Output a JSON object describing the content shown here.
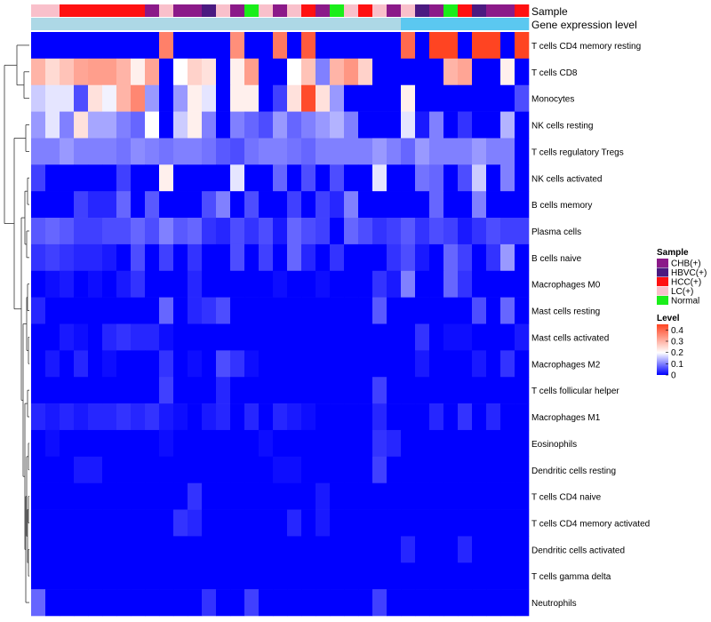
{
  "chart_data": {
    "type": "heatmap",
    "title": "",
    "annotation_rows": [
      {
        "label": "Sample"
      },
      {
        "label": "Gene expression level"
      }
    ],
    "sample_groups": [
      "LC(+)",
      "LC(+)",
      "HCC(+)",
      "HCC(+)",
      "HCC(+)",
      "HCC(+)",
      "HCC(+)",
      "HCC(+)",
      "CHB(+)",
      "LC(+)",
      "CHB(+)",
      "CHB(+)",
      "HBVC(+)",
      "LC(+)",
      "CHB(+)",
      "Normal",
      "LC(+)",
      "CHB(+)",
      "LC(+)",
      "HCC(+)",
      "CHB(+)",
      "Normal",
      "LC(+)",
      "HCC(+)",
      "LC(+)",
      "CHB(+)",
      "LC(+)",
      "HBVC(+)",
      "CHB(+)",
      "Normal",
      "HCC(+)",
      "HBVC(+)",
      "CHB(+)",
      "CHB(+)",
      "HCC(+)"
    ],
    "expression_level": [
      "low",
      "low",
      "low",
      "low",
      "low",
      "low",
      "low",
      "low",
      "low",
      "low",
      "low",
      "low",
      "low",
      "low",
      "low",
      "low",
      "low",
      "low",
      "low",
      "low",
      "low",
      "low",
      "low",
      "low",
      "low",
      "low",
      "high",
      "high",
      "high",
      "high",
      "high",
      "high",
      "high",
      "high",
      "high"
    ],
    "group_colors": {
      "CHB(+)": "#8b1a89",
      "HBVC(+)": "#4b1a80",
      "HCC(+)": "#ff1111",
      "LC(+)": "#f9c0cb",
      "Normal": "#1aee1a"
    },
    "expression_colors": {
      "low": "#add8e6",
      "high": "#5bc8f0"
    },
    "row_labels": [
      "T cells CD4 memory resting",
      "T cells CD8",
      "Monocytes",
      "NK cells resting",
      "T cells regulatory  Tregs",
      "NK cells activated",
      "B cells memory",
      "Plasma cells",
      "B cells naive",
      "Macrophages M0",
      "Mast cells resting",
      "Mast cells activated",
      "Macrophages M2",
      "T cells follicular helper",
      "Macrophages M1",
      "Eosinophils",
      "Dendritic cells resting",
      "T cells CD4 naive",
      "T cells CD4 memory activated",
      "Dendritic cells activated",
      "T cells gamma delta",
      "Neutrophils"
    ],
    "values": [
      [
        0.0,
        0.0,
        0.0,
        0.0,
        0.0,
        0.0,
        0.0,
        0.0,
        0.0,
        0.37,
        0.0,
        0.0,
        0.0,
        0.0,
        0.35,
        0.0,
        0.0,
        0.38,
        0.0,
        0.42,
        0.0,
        0.0,
        0.0,
        0.0,
        0.0,
        0.0,
        0.4,
        0.0,
        0.45,
        0.45,
        0.0,
        0.45,
        0.45,
        0.0,
        0.45
      ],
      [
        0.3,
        0.25,
        0.28,
        0.32,
        0.33,
        0.33,
        0.3,
        0.22,
        0.32,
        0.0,
        0.2,
        0.26,
        0.24,
        0.0,
        0.22,
        0.33,
        0.0,
        0.0,
        0.2,
        0.28,
        0.1,
        0.3,
        0.34,
        0.26,
        0.0,
        0.0,
        0.0,
        0.0,
        0.0,
        0.3,
        0.32,
        0.0,
        0.0,
        0.22,
        0.0
      ],
      [
        0.16,
        0.18,
        0.18,
        0.06,
        0.24,
        0.19,
        0.3,
        0.36,
        0.12,
        0.0,
        0.12,
        0.22,
        0.18,
        0.0,
        0.22,
        0.22,
        0.0,
        0.05,
        0.24,
        0.44,
        0.24,
        0.12,
        0.0,
        0.0,
        0.0,
        0.0,
        0.22,
        0.0,
        0.0,
        0.0,
        0.0,
        0.0,
        0.0,
        0.0,
        0.06
      ],
      [
        0.12,
        0.18,
        0.1,
        0.24,
        0.13,
        0.13,
        0.1,
        0.08,
        0.2,
        0.0,
        0.16,
        0.22,
        0.1,
        0.0,
        0.1,
        0.08,
        0.06,
        0.12,
        0.08,
        0.1,
        0.12,
        0.14,
        0.1,
        0.0,
        0.0,
        0.0,
        0.18,
        0.02,
        0.1,
        0.0,
        0.04,
        0.0,
        0.0,
        0.14,
        0.0
      ],
      [
        0.1,
        0.1,
        0.12,
        0.1,
        0.1,
        0.1,
        0.09,
        0.11,
        0.1,
        0.09,
        0.1,
        0.1,
        0.09,
        0.07,
        0.06,
        0.09,
        0.1,
        0.1,
        0.09,
        0.08,
        0.1,
        0.1,
        0.1,
        0.1,
        0.12,
        0.1,
        0.08,
        0.12,
        0.1,
        0.1,
        0.1,
        0.12,
        0.1,
        0.1,
        0.0
      ],
      [
        0.05,
        0.0,
        0.0,
        0.0,
        0.0,
        0.0,
        0.05,
        0.0,
        0.0,
        0.22,
        0.0,
        0.0,
        0.0,
        0.0,
        0.18,
        0.0,
        0.0,
        0.08,
        0.0,
        0.06,
        0.0,
        0.06,
        0.0,
        0.0,
        0.18,
        0.0,
        0.0,
        0.09,
        0.08,
        0.0,
        0.06,
        0.16,
        0.0,
        0.1,
        0.0
      ],
      [
        0.0,
        0.0,
        0.0,
        0.05,
        0.03,
        0.03,
        0.08,
        0.0,
        0.07,
        0.0,
        0.0,
        0.0,
        0.06,
        0.1,
        0.0,
        0.06,
        0.0,
        0.0,
        0.05,
        0.0,
        0.05,
        0.03,
        0.1,
        0.0,
        0.0,
        0.0,
        0.0,
        0.0,
        0.08,
        0.0,
        0.0,
        0.1,
        0.0,
        0.0,
        0.0
      ],
      [
        0.07,
        0.08,
        0.07,
        0.05,
        0.05,
        0.06,
        0.06,
        0.08,
        0.06,
        0.1,
        0.07,
        0.08,
        0.04,
        0.03,
        0.06,
        0.04,
        0.06,
        0.02,
        0.08,
        0.06,
        0.05,
        0.0,
        0.08,
        0.06,
        0.04,
        0.05,
        0.07,
        0.04,
        0.06,
        0.05,
        0.02,
        0.04,
        0.06,
        0.05,
        0.05
      ],
      [
        0.04,
        0.05,
        0.04,
        0.03,
        0.03,
        0.02,
        0.0,
        0.06,
        0.0,
        0.05,
        0.0,
        0.04,
        0.0,
        0.0,
        0.06,
        0.0,
        0.05,
        0.0,
        0.08,
        0.03,
        0.0,
        0.04,
        0.0,
        0.0,
        0.0,
        0.04,
        0.06,
        0.02,
        0.0,
        0.08,
        0.05,
        0.0,
        0.04,
        0.12,
        0.0
      ],
      [
        0.0,
        0.01,
        0.02,
        0.0,
        0.01,
        0.0,
        0.02,
        0.04,
        0.0,
        0.0,
        0.0,
        0.03,
        0.0,
        0.0,
        0.0,
        0.0,
        0.0,
        0.01,
        0.0,
        0.0,
        0.01,
        0.0,
        0.0,
        0.0,
        0.04,
        0.02,
        0.1,
        0.0,
        0.0,
        0.08,
        0.04,
        0.0,
        0.0,
        0.0,
        0.0
      ],
      [
        0.03,
        0.0,
        0.0,
        0.0,
        0.0,
        0.0,
        0.0,
        0.0,
        0.0,
        0.08,
        0.0,
        0.03,
        0.04,
        0.06,
        0.0,
        0.0,
        0.0,
        0.0,
        0.0,
        0.0,
        0.0,
        0.0,
        0.0,
        0.0,
        0.07,
        0.0,
        0.0,
        0.0,
        0.0,
        0.0,
        0.0,
        0.06,
        0.0,
        0.08,
        0.0
      ],
      [
        0.0,
        0.0,
        0.02,
        0.01,
        0.0,
        0.03,
        0.04,
        0.03,
        0.03,
        0.01,
        0.0,
        0.0,
        0.0,
        0.0,
        0.0,
        0.0,
        0.0,
        0.0,
        0.0,
        0.0,
        0.0,
        0.0,
        0.0,
        0.0,
        0.0,
        0.0,
        0.0,
        0.04,
        0.0,
        0.01,
        0.01,
        0.0,
        0.0,
        0.0,
        0.02
      ],
      [
        0.0,
        0.02,
        0.0,
        0.03,
        0.0,
        0.01,
        0.0,
        0.0,
        0.0,
        0.04,
        0.0,
        0.01,
        0.0,
        0.06,
        0.04,
        0.01,
        0.0,
        0.0,
        0.0,
        0.0,
        0.0,
        0.0,
        0.0,
        0.0,
        0.0,
        0.0,
        0.0,
        0.02,
        0.0,
        0.0,
        0.0,
        0.02,
        0.0,
        0.04,
        0.0
      ],
      [
        0.0,
        0.0,
        0.0,
        0.0,
        0.0,
        0.0,
        0.0,
        0.0,
        0.0,
        0.05,
        0.0,
        0.0,
        0.0,
        0.03,
        0.0,
        0.0,
        0.0,
        0.0,
        0.0,
        0.0,
        0.0,
        0.0,
        0.0,
        0.0,
        0.05,
        0.0,
        0.0,
        0.0,
        0.0,
        0.0,
        0.0,
        0.0,
        0.0,
        0.0,
        0.0
      ],
      [
        0.03,
        0.02,
        0.03,
        0.02,
        0.03,
        0.03,
        0.04,
        0.03,
        0.04,
        0.02,
        0.01,
        0.0,
        0.02,
        0.03,
        0.0,
        0.03,
        0.0,
        0.03,
        0.02,
        0.01,
        0.0,
        0.0,
        0.0,
        0.0,
        0.03,
        0.0,
        0.0,
        0.0,
        0.03,
        0.0,
        0.04,
        0.0,
        0.03,
        0.0,
        0.0
      ],
      [
        0.0,
        0.01,
        0.0,
        0.0,
        0.0,
        0.0,
        0.0,
        0.0,
        0.0,
        0.01,
        0.0,
        0.0,
        0.0,
        0.0,
        0.0,
        0.0,
        0.01,
        0.0,
        0.0,
        0.0,
        0.0,
        0.0,
        0.0,
        0.0,
        0.04,
        0.03,
        0.0,
        0.0,
        0.0,
        0.0,
        0.0,
        0.0,
        0.0,
        0.0,
        0.0
      ],
      [
        0.0,
        0.0,
        0.0,
        0.02,
        0.02,
        0.0,
        0.0,
        0.0,
        0.0,
        0.0,
        0.0,
        0.0,
        0.0,
        0.0,
        0.0,
        0.0,
        0.0,
        0.01,
        0.01,
        0.0,
        0.0,
        0.0,
        0.0,
        0.0,
        0.05,
        0.0,
        0.0,
        0.0,
        0.0,
        0.0,
        0.0,
        0.0,
        0.0,
        0.0,
        0.0
      ],
      [
        0.0,
        0.0,
        0.0,
        0.0,
        0.0,
        0.0,
        0.0,
        0.0,
        0.0,
        0.0,
        0.0,
        0.04,
        0.0,
        0.0,
        0.0,
        0.0,
        0.0,
        0.0,
        0.0,
        0.0,
        0.02,
        0.0,
        0.0,
        0.0,
        0.0,
        0.0,
        0.0,
        0.0,
        0.0,
        0.0,
        0.0,
        0.0,
        0.0,
        0.0,
        0.0
      ],
      [
        0.0,
        0.0,
        0.0,
        0.0,
        0.0,
        0.0,
        0.0,
        0.0,
        0.0,
        0.0,
        0.04,
        0.03,
        0.0,
        0.0,
        0.0,
        0.0,
        0.0,
        0.0,
        0.03,
        0.0,
        0.02,
        0.0,
        0.0,
        0.0,
        0.0,
        0.0,
        0.0,
        0.0,
        0.0,
        0.0,
        0.0,
        0.0,
        0.0,
        0.0,
        0.0
      ],
      [
        0.0,
        0.0,
        0.0,
        0.0,
        0.0,
        0.0,
        0.0,
        0.0,
        0.0,
        0.0,
        0.0,
        0.0,
        0.0,
        0.0,
        0.0,
        0.0,
        0.0,
        0.0,
        0.0,
        0.0,
        0.0,
        0.0,
        0.0,
        0.0,
        0.0,
        0.0,
        0.03,
        0.0,
        0.0,
        0.0,
        0.03,
        0.0,
        0.0,
        0.0,
        0.0
      ],
      [
        0.0,
        0.0,
        0.0,
        0.0,
        0.0,
        0.0,
        0.0,
        0.0,
        0.0,
        0.0,
        0.0,
        0.0,
        0.0,
        0.0,
        0.0,
        0.0,
        0.0,
        0.0,
        0.0,
        0.0,
        0.0,
        0.0,
        0.0,
        0.0,
        0.0,
        0.0,
        0.0,
        0.0,
        0.0,
        0.0,
        0.0,
        0.0,
        0.0,
        0.0,
        0.0
      ],
      [
        0.08,
        0.0,
        0.0,
        0.0,
        0.0,
        0.0,
        0.0,
        0.0,
        0.0,
        0.0,
        0.0,
        0.0,
        0.04,
        0.0,
        0.0,
        0.05,
        0.0,
        0.0,
        0.0,
        0.0,
        0.0,
        0.0,
        0.0,
        0.0,
        0.05,
        0.0,
        0.0,
        0.0,
        0.0,
        0.0,
        0.0,
        0.0,
        0.0,
        0.0,
        0.0
      ]
    ],
    "color_scale": {
      "min": 0,
      "max": 0.45,
      "low": "#0000ff",
      "mid": "#ffffff",
      "high": "#ff4422",
      "mid_value": 0.2
    },
    "legend": {
      "sample_title": "Sample",
      "sample_items": [
        "CHB(+)",
        "HBVC(+)",
        "HCC(+)",
        "LC(+)",
        "Normal"
      ],
      "level_title": "Level",
      "level_ticks": [
        "0.4",
        "0.3",
        "0.2",
        "0.1",
        "0"
      ],
      "level_tick_values": [
        0.4,
        0.3,
        0.2,
        0.1,
        0
      ],
      "placement": "right"
    },
    "dendrogram": "rows"
  }
}
